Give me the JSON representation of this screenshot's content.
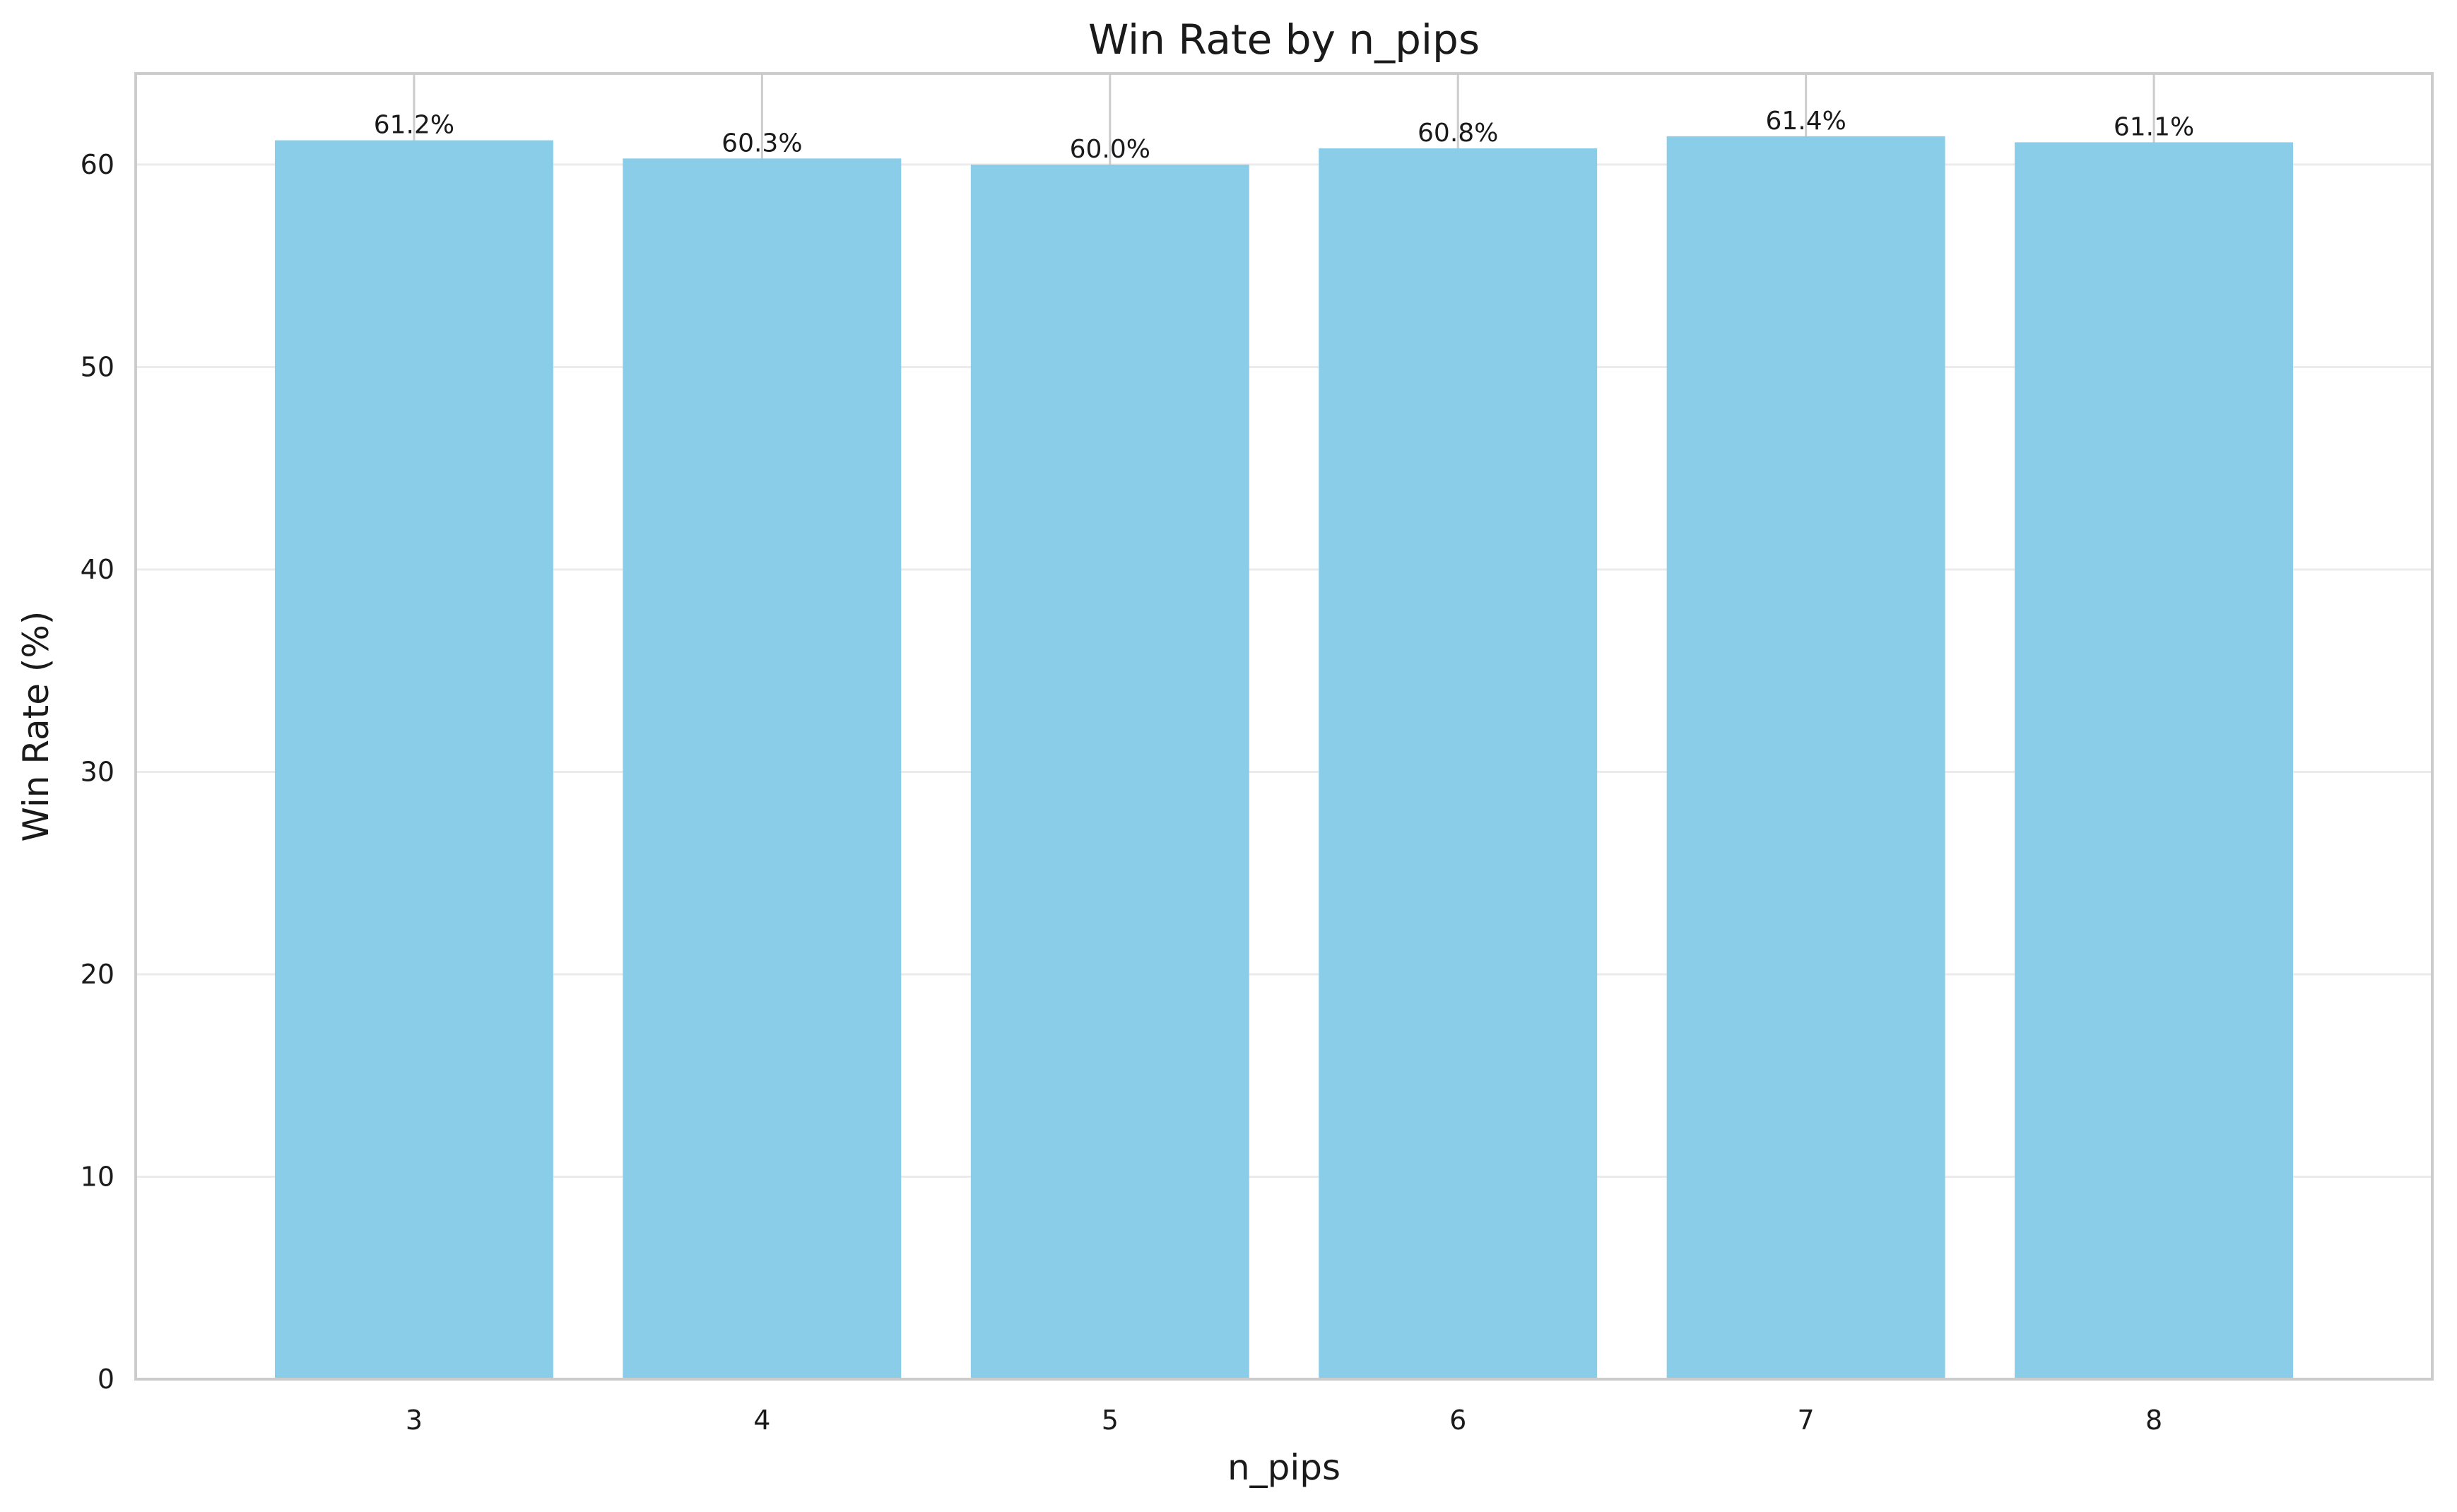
{
  "chart_data": {
    "type": "bar",
    "title": "Win Rate by n_pips",
    "xlabel": "n_pips",
    "ylabel": "Win Rate (%)",
    "categories": [
      "3",
      "4",
      "5",
      "6",
      "7",
      "8"
    ],
    "values": [
      61.2,
      60.3,
      60.0,
      60.8,
      61.4,
      61.1
    ],
    "value_labels": [
      "61.2%",
      "60.3%",
      "60.0%",
      "60.8%",
      "61.4%",
      "61.1%"
    ],
    "y_ticks": [
      0,
      10,
      20,
      30,
      40,
      50,
      60
    ],
    "ylim": [
      0,
      64.5
    ],
    "grid": true,
    "bar_color": "#89CDE9",
    "grid_color": "#EBEBEB",
    "spine_color": "#CCCCCC"
  }
}
